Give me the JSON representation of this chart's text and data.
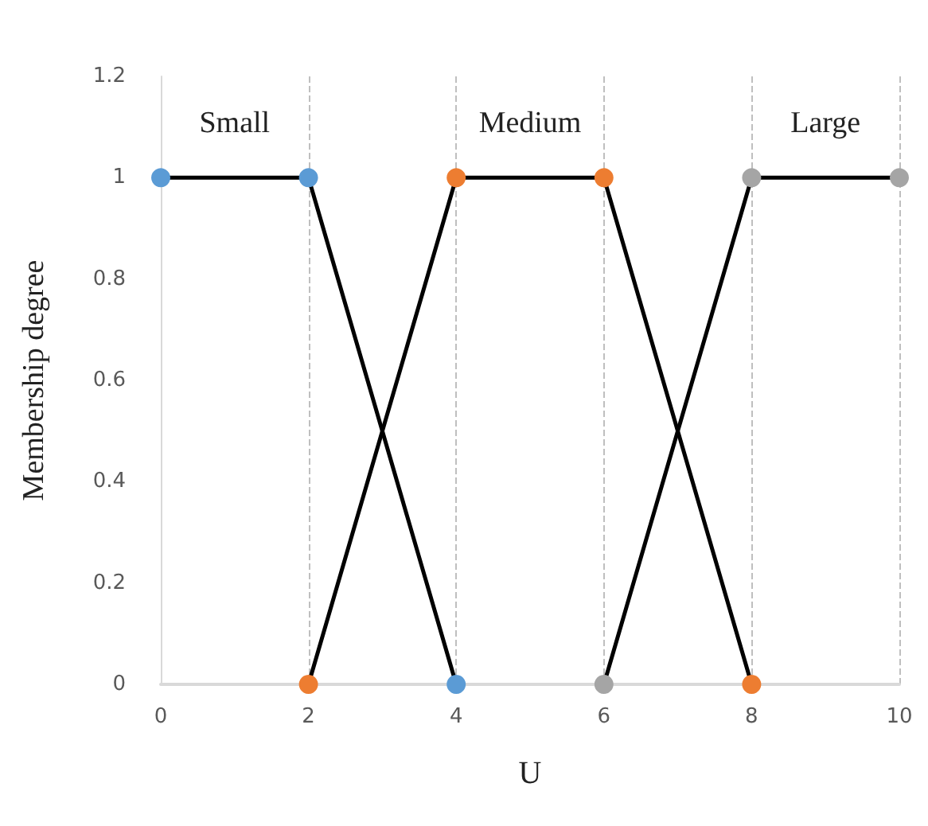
{
  "chart_data": {
    "type": "line",
    "xlabel": "U",
    "ylabel": "Membership degree",
    "series": [
      {
        "name": "Small",
        "color": "#5b9bd5",
        "x": [
          0,
          2,
          4
        ],
        "values": [
          1,
          1,
          0
        ]
      },
      {
        "name": "Medium",
        "color": "#ed7d31",
        "x": [
          2,
          4,
          6,
          8
        ],
        "values": [
          0,
          1,
          1,
          0
        ]
      },
      {
        "name": "Large",
        "color": "#a5a5a5",
        "x": [
          6,
          8,
          10
        ],
        "values": [
          0,
          1,
          1
        ]
      }
    ],
    "xlim": [
      0,
      10
    ],
    "xticks": [
      0,
      2,
      4,
      6,
      8,
      10
    ],
    "ylim": [
      0,
      1.2
    ],
    "yticks": [
      0,
      0.2,
      0.4,
      0.6,
      0.8,
      1,
      1.2
    ],
    "grid": "x",
    "marker": "circle",
    "line_style": "solid"
  }
}
